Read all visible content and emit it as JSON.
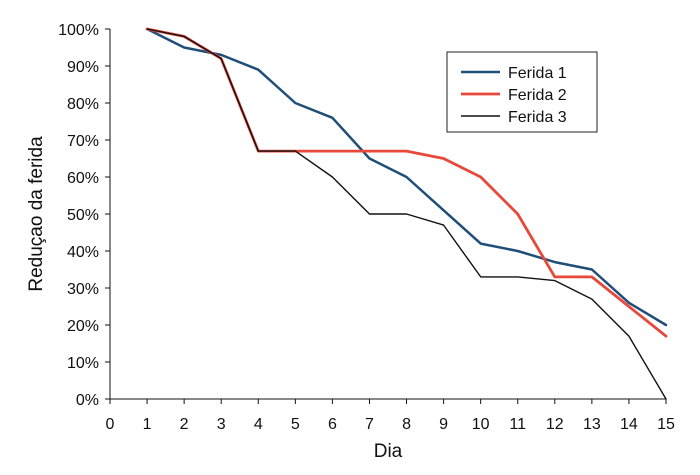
{
  "chart_data": {
    "type": "line",
    "xlabel": "Dia",
    "ylabel": "Reduçao da ferida",
    "xlim": [
      0,
      15
    ],
    "ylim": [
      0,
      100
    ],
    "x_ticks": [
      "0",
      "1",
      "2",
      "3",
      "4",
      "5",
      "6",
      "7",
      "8",
      "9",
      "10",
      "11",
      "12",
      "13",
      "14",
      "15"
    ],
    "y_ticks": [
      "0%",
      "10%",
      "20%",
      "30%",
      "40%",
      "50%",
      "60%",
      "70%",
      "80%",
      "90%",
      "100%"
    ],
    "grid": false,
    "legend_position": "top-right",
    "series": [
      {
        "name": "Ferida 1",
        "color": "#1f4e79",
        "x": [
          1,
          2,
          3,
          4,
          5,
          6,
          7,
          8,
          9,
          10,
          11,
          12,
          13,
          14,
          15
        ],
        "y": [
          100,
          95,
          93,
          89,
          80,
          76,
          65,
          60,
          51,
          42,
          40,
          37,
          35,
          26,
          20
        ]
      },
      {
        "name": "Ferida 2",
        "color": "#e8483a",
        "x": [
          1,
          2,
          3,
          4,
          5,
          6,
          7,
          8,
          9,
          10,
          11,
          12,
          13,
          14,
          15
        ],
        "y": [
          100,
          98,
          92,
          67,
          67,
          67,
          67,
          67,
          65,
          60,
          50,
          33,
          33,
          25,
          17
        ]
      },
      {
        "name": "Ferida 3",
        "color": "#111111",
        "x": [
          1,
          2,
          3,
          4,
          5,
          6,
          7,
          8,
          9,
          10,
          11,
          12,
          13,
          14,
          15
        ],
        "y": [
          100,
          98,
          92,
          67,
          67,
          60,
          50,
          50,
          47,
          33,
          33,
          32,
          27,
          17,
          0
        ]
      }
    ]
  }
}
